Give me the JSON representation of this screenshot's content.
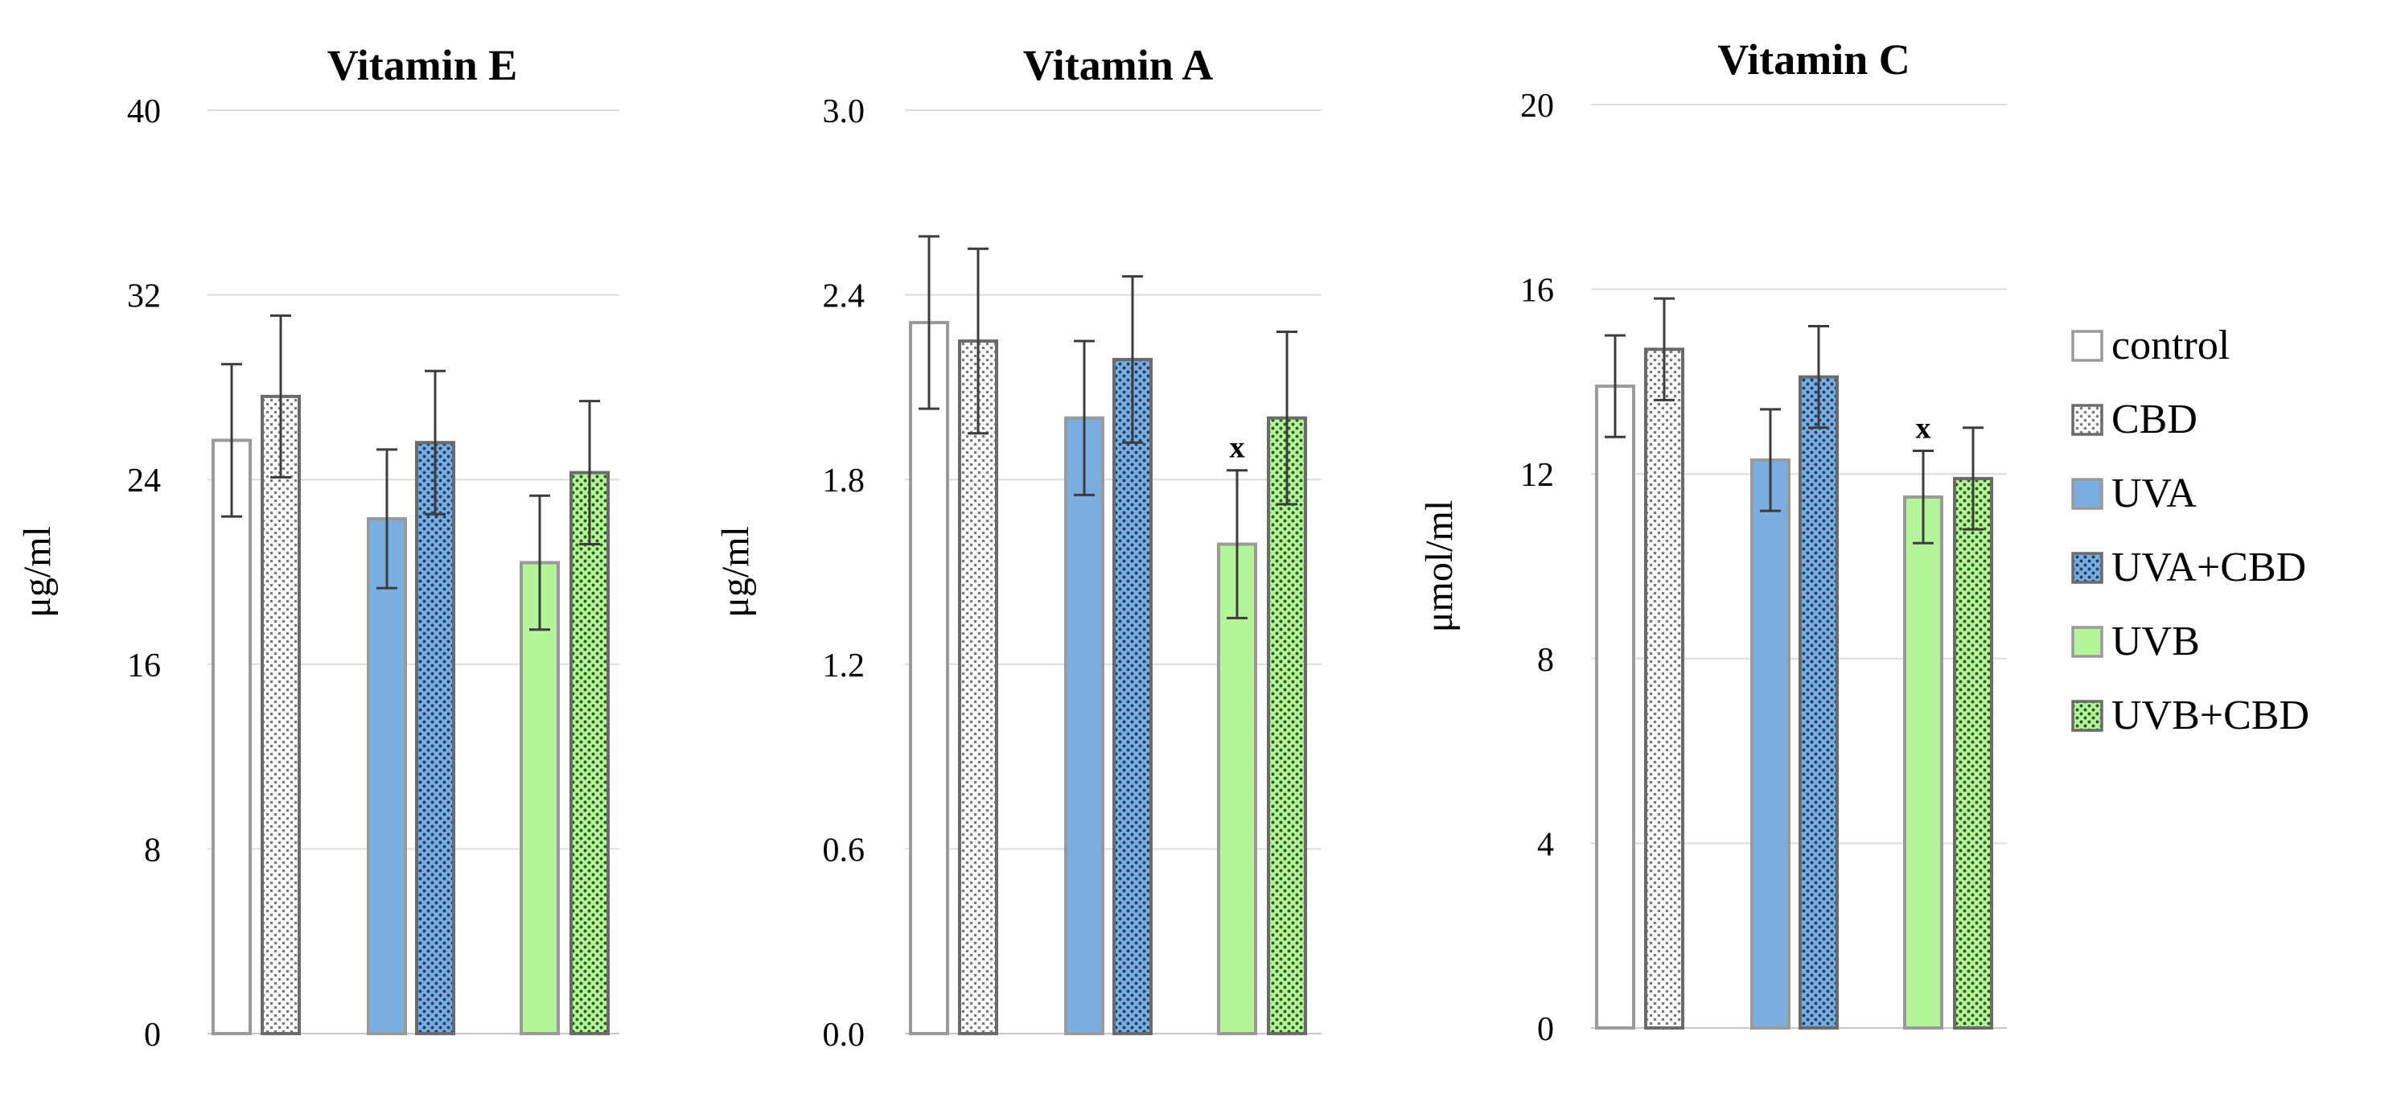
{
  "chart_data": [
    {
      "type": "bar",
      "title": "Vitamin E",
      "ylabel": "μg/ml",
      "ylim": [
        0,
        40
      ],
      "yticks": [
        "0",
        "8",
        "16",
        "24",
        "32",
        "40"
      ],
      "ytick_values": [
        0,
        8,
        16,
        24,
        32,
        40
      ],
      "grid": true,
      "categories": [
        "control",
        "CBD",
        "UVA",
        "UVA+CBD",
        "UVB",
        "UVB+CBD"
      ],
      "values": [
        25.7,
        27.6,
        22.3,
        25.6,
        20.4,
        24.3
      ],
      "errors": [
        3.3,
        3.5,
        3.0,
        3.1,
        2.9,
        3.1
      ],
      "annotations": []
    },
    {
      "type": "bar",
      "title": "Vitamin A",
      "ylabel": "μg/ml",
      "ylim": [
        0,
        3.0
      ],
      "yticks": [
        "0.0",
        "0.6",
        "1.2",
        "1.8",
        "2.4",
        "3.0"
      ],
      "ytick_values": [
        0,
        0.6,
        1.2,
        1.8,
        2.4,
        3.0
      ],
      "grid": true,
      "categories": [
        "control",
        "CBD",
        "UVA",
        "UVA+CBD",
        "UVB",
        "UVB+CBD"
      ],
      "values": [
        2.31,
        2.25,
        2.0,
        2.19,
        1.59,
        2.0
      ],
      "errors": [
        0.28,
        0.3,
        0.25,
        0.27,
        0.24,
        0.28
      ],
      "annotations": [
        {
          "series_index": 4,
          "text": "x"
        }
      ]
    },
    {
      "type": "bar",
      "title": "Vitamin C",
      "ylabel": "μmol/ml",
      "ylim": [
        0,
        20
      ],
      "yticks": [
        "0",
        "4",
        "8",
        "12",
        "16",
        "20"
      ],
      "ytick_values": [
        0,
        4,
        8,
        12,
        16,
        20
      ],
      "grid": true,
      "categories": [
        "control",
        "CBD",
        "UVA",
        "UVA+CBD",
        "UVB",
        "UVB+CBD"
      ],
      "values": [
        13.9,
        14.7,
        12.3,
        14.1,
        11.5,
        11.9
      ],
      "errors": [
        1.1,
        1.1,
        1.1,
        1.1,
        1.0,
        1.1
      ],
      "annotations": [
        {
          "series_index": 4,
          "text": "x"
        }
      ]
    }
  ],
  "legend": {
    "position": "right",
    "items": [
      {
        "label": "control",
        "color": "#ffffff",
        "pattern": "none"
      },
      {
        "label": "CBD",
        "color": "#ffffff",
        "pattern": "dots-grey"
      },
      {
        "label": "UVA",
        "color": "#7aaee0",
        "pattern": "none"
      },
      {
        "label": "UVA+CBD",
        "color": "#7aaee0",
        "pattern": "dots-dark"
      },
      {
        "label": "UVB",
        "color": "#b4f59a",
        "pattern": "none"
      },
      {
        "label": "UVB+CBD",
        "color": "#b4f59a",
        "pattern": "dots-dark"
      }
    ]
  }
}
